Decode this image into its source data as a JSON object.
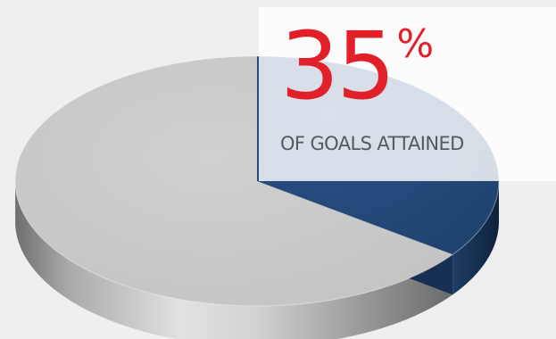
{
  "chart_data": {
    "type": "pie",
    "style": "3d",
    "slices": [
      {
        "label": "OF GOALS ATTAINED",
        "value": 35,
        "color": "#244a7c",
        "side_color": "#162f52"
      },
      {
        "label": "",
        "value": 65,
        "color": "#c8c8c8",
        "side_color": "#a6a6a6"
      }
    ],
    "background_color": "#efefef"
  },
  "stat": {
    "value": "35",
    "unit": "%",
    "caption": "OF GOALS ATTAINED",
    "value_color": "#e2202a",
    "caption_color": "#555a5f"
  }
}
